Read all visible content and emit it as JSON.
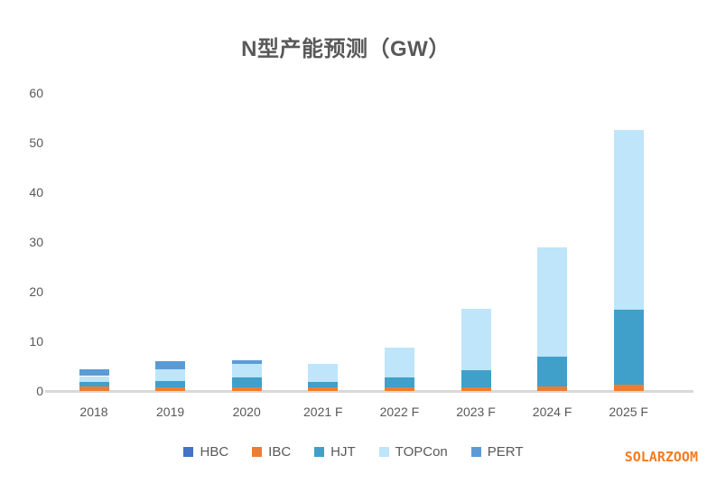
{
  "title": "N型产能预测（GW）",
  "watermark": "SOLARZOOM",
  "colors": {
    "HBC": "#4472c4",
    "IBC": "#ed7d31",
    "HJT": "#41a0c9",
    "TOPCon": "#bee5fa",
    "PERT": "#5b9bd5",
    "title_text": "#595959",
    "axis_text": "#595959",
    "baseline": "#d9d9d9",
    "watermark_text": "#f57c21"
  },
  "chart_data": {
    "type": "bar",
    "stacked": true,
    "title": "N型产能预测（GW）",
    "xlabel": "",
    "ylabel": "",
    "categories": [
      "2018",
      "2019",
      "2020",
      "2021 F",
      "2022 F",
      "2023 F",
      "2024 F",
      "2025 F"
    ],
    "series": [
      {
        "name": "HBC",
        "values": [
          0,
          0,
          0,
          0,
          0,
          0,
          0,
          0
        ]
      },
      {
        "name": "IBC",
        "values": [
          0.9,
          0.8,
          0.8,
          0.7,
          0.8,
          0.8,
          1.0,
          1.2
        ]
      },
      {
        "name": "HJT",
        "values": [
          1.0,
          1.2,
          1.9,
          1.2,
          2.0,
          3.3,
          6.0,
          15.2
        ]
      },
      {
        "name": "TOPCon",
        "values": [
          1.1,
          2.3,
          2.7,
          3.6,
          6.0,
          12.4,
          22.0,
          36.1
        ]
      },
      {
        "name": "PERT",
        "values": [
          1.4,
          1.7,
          0.7,
          0,
          0,
          0,
          0,
          0
        ]
      }
    ],
    "totals": [
      4.4,
      6.0,
      6.1,
      5.5,
      8.8,
      16.5,
      29.0,
      52.5
    ],
    "y_ticks": [
      0,
      10,
      20,
      30,
      40,
      50,
      60
    ],
    "ylim": [
      0,
      60
    ],
    "grid": false,
    "legend_position": "bottom"
  }
}
